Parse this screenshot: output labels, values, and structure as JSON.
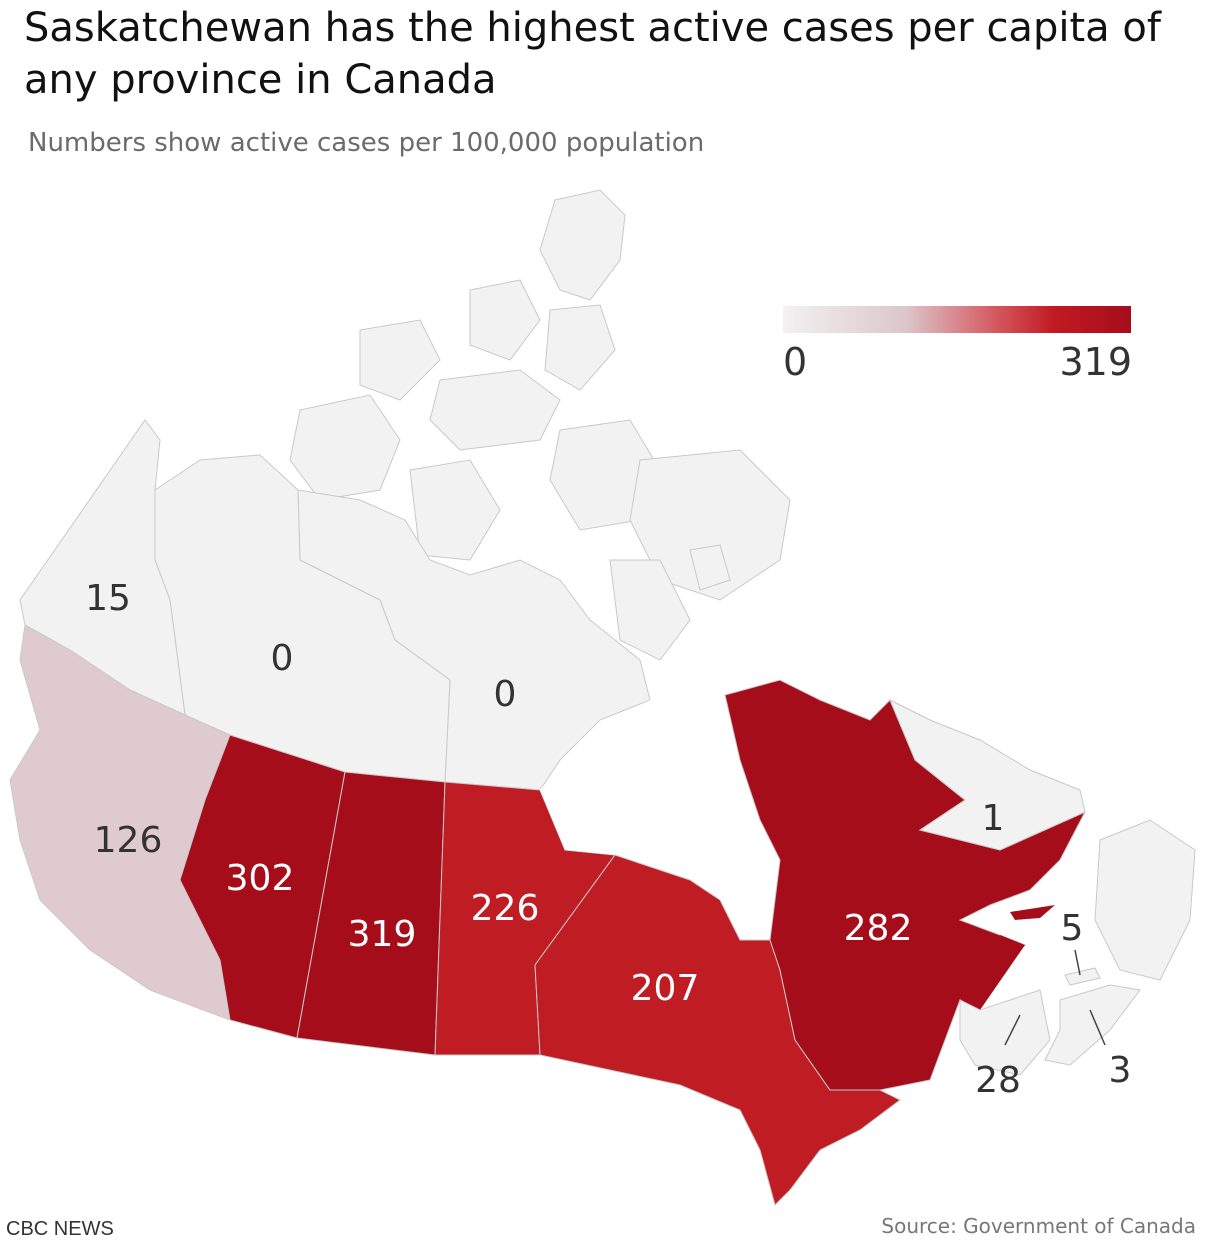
{
  "title": "Saskatchewan has the highest active cases per capita of any province in Canada",
  "subtitle": "Numbers show active cases per 100,000 population",
  "legend": {
    "min": "0",
    "max": "319"
  },
  "footer": {
    "brand": "CBC NEWS",
    "source": "Source: Government of Canada"
  },
  "colors": {
    "low": "#f2f2f2",
    "bc": "#dfcbcf",
    "high": "#a60d1b",
    "mid": "#bf1c23"
  },
  "regions": [
    {
      "id": "yt",
      "label": "15"
    },
    {
      "id": "nt",
      "label": "0"
    },
    {
      "id": "nu",
      "label": "0"
    },
    {
      "id": "bc",
      "label": "126"
    },
    {
      "id": "ab",
      "label": "302"
    },
    {
      "id": "sk",
      "label": "319"
    },
    {
      "id": "mb",
      "label": "226"
    },
    {
      "id": "on",
      "label": "207"
    },
    {
      "id": "qc",
      "label": "282"
    },
    {
      "id": "nl",
      "label": "1"
    },
    {
      "id": "pe",
      "label": "5"
    },
    {
      "id": "nb",
      "label": "28"
    },
    {
      "id": "ns",
      "label": "3"
    }
  ]
}
